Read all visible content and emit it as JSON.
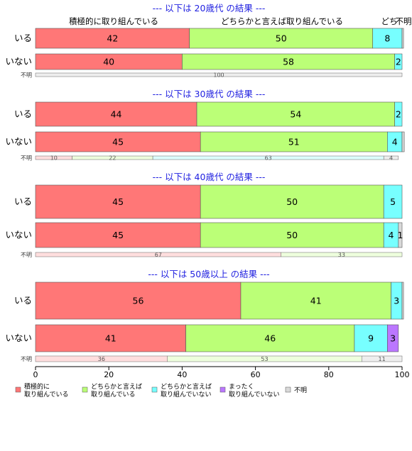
{
  "chart_data": {
    "type": "bar",
    "orientation": "horizontal",
    "stacked": true,
    "xlim": [
      0,
      100
    ],
    "xticks": [
      "0",
      "20",
      "40",
      "60",
      "80",
      "100"
    ],
    "header_labels": [
      "積極的に取り組んでいる",
      "どちらかと言えば取り組んでいる",
      "どち",
      "不明"
    ],
    "legend": {
      "placement": "bottom",
      "items": [
        {
          "label": [
            "積極的に",
            "取り組んでいる"
          ],
          "color": "#ff7777"
        },
        {
          "label": [
            "どちらかと言えば",
            "取り組んでいる"
          ],
          "color": "#bbff77"
        },
        {
          "label": [
            "どちらかと言えば",
            "取り組んでいない"
          ],
          "color": "#77ffff"
        },
        {
          "label": [
            "まったく",
            "取り組んでいない"
          ],
          "color": "#bb77ff"
        },
        {
          "label": [
            "不明"
          ],
          "color": "#d9d9d9"
        }
      ]
    },
    "unknown_colors": [
      "#ffdede",
      "#eeffdd",
      "#ddffff",
      "#eedeff",
      "#eeeeee"
    ],
    "panels": [
      {
        "title": "--- 以下は 20歳代 の結果 ---",
        "rows": [
          {
            "label": "いる",
            "values": [
              42,
              50,
              8,
              0,
              0.4
            ],
            "labels": [
              "42",
              "50",
              "8",
              "",
              ""
            ]
          },
          {
            "label": "いない",
            "values": [
              40,
              58,
              2,
              0,
              0
            ],
            "labels": [
              "40",
              "58",
              "2",
              "",
              ""
            ]
          }
        ],
        "unknown": {
          "label": "不明",
          "values": [
            0,
            0,
            0,
            0,
            100
          ],
          "labels": [
            "",
            "",
            "",
            "",
            "100"
          ]
        }
      },
      {
        "title": "--- 以下は 30歳代 の結果 ---",
        "rows": [
          {
            "label": "いる",
            "values": [
              44,
              54,
              2,
              0,
              0
            ],
            "labels": [
              "44",
              "54",
              "2",
              "",
              ""
            ]
          },
          {
            "label": "いない",
            "values": [
              45,
              51,
              4,
              0,
              0.6
            ],
            "labels": [
              "45",
              "51",
              "4",
              "",
              ""
            ]
          }
        ],
        "unknown": {
          "label": "不明",
          "values": [
            10,
            22,
            63,
            0,
            4
          ],
          "labels": [
            "10",
            "22",
            "63",
            "",
            "4"
          ]
        }
      },
      {
        "title": "--- 以下は 40歳代 の結果 ---",
        "rows": [
          {
            "label": "いる",
            "values": [
              45,
              50,
              5,
              0,
              0
            ],
            "labels": [
              "45",
              "50",
              "5",
              "",
              ""
            ]
          },
          {
            "label": "いない",
            "values": [
              45,
              50,
              4,
              0,
              1
            ],
            "labels": [
              "45",
              "50",
              "4",
              "",
              "1"
            ]
          }
        ],
        "unknown": {
          "label": "不明",
          "values": [
            67,
            33,
            0,
            0,
            0
          ],
          "labels": [
            "67",
            "33",
            "",
            "",
            ""
          ]
        }
      },
      {
        "title": "--- 以下は 50歳以上 の結果 ---",
        "rows": [
          {
            "label": "いる",
            "values": [
              56,
              41,
              3,
              0,
              0.4
            ],
            "labels": [
              "56",
              "41",
              "3",
              "",
              ""
            ]
          },
          {
            "label": "いない",
            "values": [
              41,
              46,
              9,
              3,
              0
            ],
            "labels": [
              "41",
              "46",
              "9",
              "3",
              ""
            ]
          }
        ],
        "unknown": {
          "label": "不明",
          "values": [
            36,
            53,
            0,
            0,
            11
          ],
          "labels": [
            "36",
            "53",
            "",
            "",
            "11"
          ]
        }
      }
    ]
  }
}
